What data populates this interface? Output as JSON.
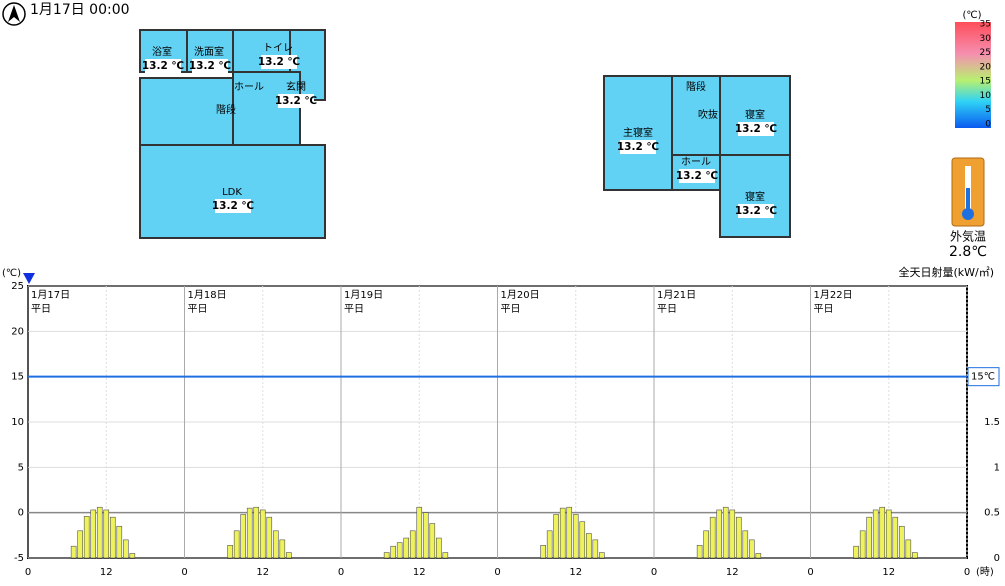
{
  "header": {
    "datetime": "1月17日 00:00"
  },
  "floor1": {
    "rooms": [
      {
        "label": "浴室",
        "temp": "13.2 ℃"
      },
      {
        "label": "洗面室",
        "temp": "13.2 ℃"
      },
      {
        "label": "トイレ",
        "temp": "13.2 ℃"
      },
      {
        "label": "ホール"
      },
      {
        "label": "玄関",
        "temp": "13.2 ℃"
      },
      {
        "label": "階段"
      },
      {
        "label": "LDK",
        "temp": "13.2 ℃"
      }
    ]
  },
  "floor2": {
    "rooms": [
      {
        "label": "階段"
      },
      {
        "label": "主寝室",
        "temp": "13.2 ℃"
      },
      {
        "label": "吹抜"
      },
      {
        "label": "ホール",
        "temp": "13.2 ℃"
      },
      {
        "label": "寝室",
        "temp": "13.2 ℃"
      },
      {
        "label": "寝室",
        "temp": "13.2 ℃"
      }
    ]
  },
  "color_scale": {
    "unit": "(℃)",
    "ticks": [
      35,
      30,
      25,
      20,
      15,
      10,
      5,
      0
    ]
  },
  "outdoor": {
    "label": "外気温",
    "temp": "2.8℃"
  },
  "chart_data": {
    "type": "bar",
    "y_label": "(℃)",
    "y2_label": "全天日射量(kW/㎡)",
    "x_label": "(時)",
    "xlim": [
      0,
      144
    ],
    "xticks": [
      0,
      12,
      {
        "value": 24,
        "label": "0"
      },
      {
        "value": 36,
        "label": "12"
      },
      {
        "value": 48,
        "label": "0"
      },
      {
        "value": 60,
        "label": "12"
      },
      {
        "value": 72,
        "label": "0"
      },
      {
        "value": 84,
        "label": "12"
      },
      {
        "value": 96,
        "label": "0"
      },
      {
        "value": 108,
        "label": "12"
      },
      {
        "value": 120,
        "label": "0"
      },
      {
        "value": 132,
        "label": "12"
      },
      {
        "value": 144,
        "label": "0"
      }
    ],
    "ylim": [
      -5,
      25
    ],
    "yticks": [
      -5,
      0,
      5,
      10,
      15,
      20,
      25
    ],
    "y2lim": [
      0,
      3
    ],
    "y2ticks": [
      0,
      0.5,
      1,
      1.5
    ],
    "grid": true,
    "days": [
      {
        "x": 0,
        "date": "1月17日",
        "kind": "平日"
      },
      {
        "x": 24,
        "date": "1月18日",
        "kind": "平日"
      },
      {
        "x": 48,
        "date": "1月19日",
        "kind": "平日"
      },
      {
        "x": 72,
        "date": "1月20日",
        "kind": "平日"
      },
      {
        "x": 96,
        "date": "1月21日",
        "kind": "平日"
      },
      {
        "x": 120,
        "date": "1月22日",
        "kind": "平日"
      }
    ],
    "reference": {
      "value": 15,
      "label": "15℃",
      "color": "#1e6fe0"
    },
    "series": [
      {
        "color": "#eef25c",
        "axis": "y2",
        "x": [
          7,
          8,
          9,
          10,
          11,
          12,
          13,
          14,
          15,
          16,
          31,
          32,
          33,
          34,
          35,
          36,
          37,
          38,
          39,
          40,
          55,
          56,
          57,
          58,
          59,
          60,
          61,
          62,
          63,
          64,
          79,
          80,
          81,
          82,
          83,
          84,
          85,
          86,
          87,
          88,
          103,
          104,
          105,
          106,
          107,
          108,
          109,
          110,
          111,
          112,
          127,
          128,
          129,
          130,
          131,
          132,
          133,
          134,
          135,
          136
        ],
        "values": [
          0.13,
          0.3,
          0.46,
          0.53,
          0.56,
          0.53,
          0.45,
          0.35,
          0.2,
          0.05,
          0.14,
          0.3,
          0.48,
          0.55,
          0.56,
          0.53,
          0.45,
          0.3,
          0.2,
          0.06,
          0.06,
          0.13,
          0.17,
          0.22,
          0.3,
          0.56,
          0.5,
          0.38,
          0.22,
          0.06,
          0.14,
          0.3,
          0.48,
          0.55,
          0.56,
          0.48,
          0.4,
          0.27,
          0.2,
          0.06,
          0.14,
          0.3,
          0.45,
          0.53,
          0.56,
          0.53,
          0.45,
          0.3,
          0.2,
          0.05,
          0.13,
          0.3,
          0.45,
          0.53,
          0.56,
          0.53,
          0.45,
          0.35,
          0.2,
          0.06
        ]
      }
    ]
  }
}
